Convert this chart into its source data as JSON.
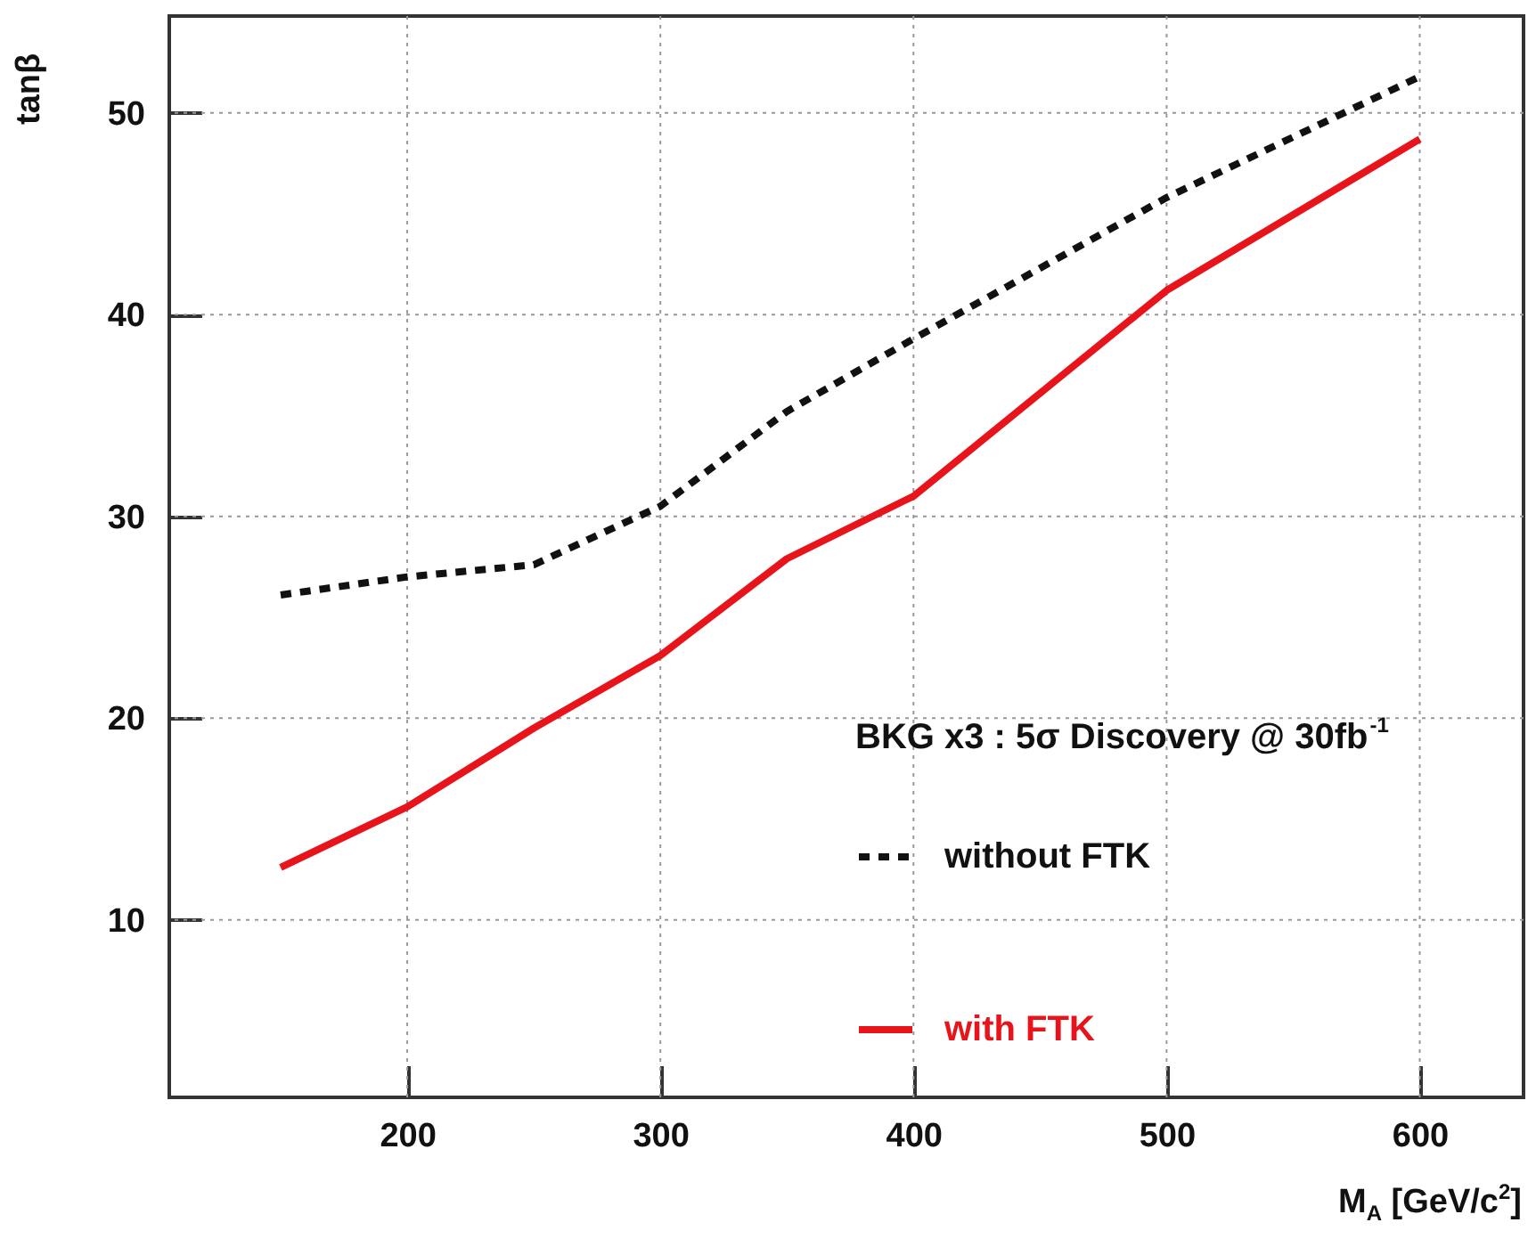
{
  "chart_data": {
    "type": "line",
    "xlabel": "M$_{A}$ [GeV/c$^{2}$]",
    "ylabel": "tanβ",
    "x": [
      150,
      200,
      250,
      300,
      350,
      400,
      500,
      600
    ],
    "series": [
      {
        "name": "without FTK",
        "color": "#111111",
        "line_style": "dashed",
        "values": [
          26.1,
          27.0,
          27.6,
          30.5,
          35.2,
          38.8,
          45.8,
          51.8
        ]
      },
      {
        "name": "with FTK",
        "color": "#e8141b",
        "line_style": "solid",
        "values": [
          12.6,
          15.6,
          19.5,
          23.1,
          27.9,
          31.0,
          41.2,
          48.7
        ]
      }
    ],
    "xlim": [
      106,
      641
    ],
    "xticks": [
      200,
      300,
      400,
      500,
      600
    ],
    "ylim": [
      1.2,
      54.8
    ],
    "yticks": [
      10,
      20,
      30,
      40,
      50
    ],
    "grid": true,
    "legend": "right",
    "marker": "none",
    "annotations": [
      "BKG x3 : 5σ Discovery @ 30fb$^{-1}$"
    ]
  }
}
